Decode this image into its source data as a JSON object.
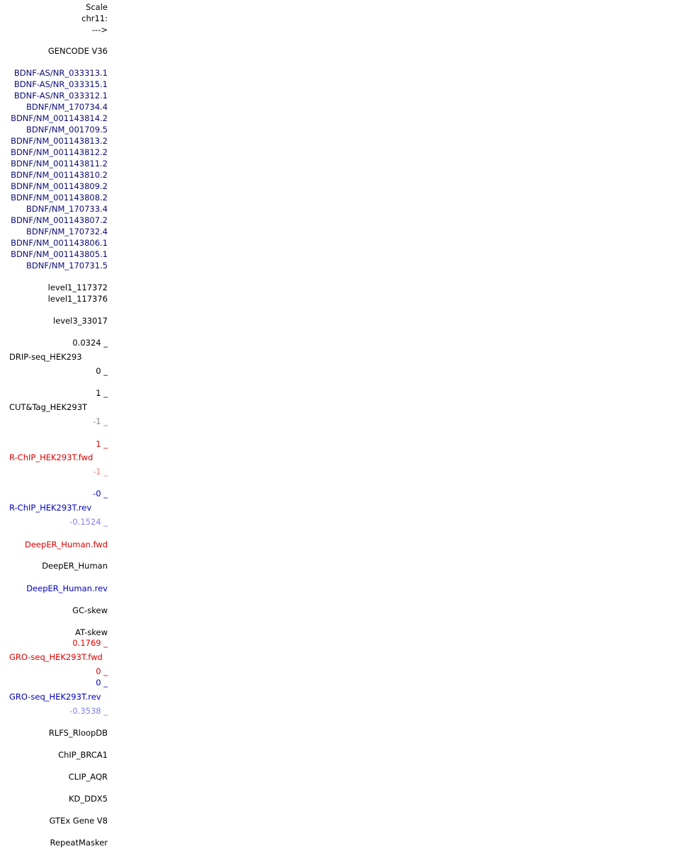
{
  "labels": [
    {
      "text": "Scale",
      "color": "#000000"
    },
    {
      "text": "chr11:",
      "color": "#000000"
    },
    {
      "text": "--->",
      "color": "#000000"
    },
    {
      "text": "GENCODE V36",
      "color": "#000000"
    },
    {
      "text": "BDNF-AS/NR_033313.1",
      "color": "#0c0c78"
    },
    {
      "text": "BDNF-AS/NR_033315.1",
      "color": "#0c0c78"
    },
    {
      "text": "BDNF-AS/NR_033312.1",
      "color": "#0c0c78"
    },
    {
      "text": "BDNF/NM_170734.4",
      "color": "#0c0c78"
    },
    {
      "text": "BDNF/NM_001143814.2",
      "color": "#0c0c78"
    },
    {
      "text": "BDNF/NM_001709.5",
      "color": "#0c0c78"
    },
    {
      "text": "BDNF/NM_001143813.2",
      "color": "#0c0c78"
    },
    {
      "text": "BDNF/NM_001143812.2",
      "color": "#0c0c78"
    },
    {
      "text": "BDNF/NM_001143811.2",
      "color": "#0c0c78"
    },
    {
      "text": "BDNF/NM_001143810.2",
      "color": "#0c0c78"
    },
    {
      "text": "BDNF/NM_001143809.2",
      "color": "#0c0c78"
    },
    {
      "text": "BDNF/NM_001143808.2",
      "color": "#0c0c78"
    },
    {
      "text": "BDNF/NM_170733.4",
      "color": "#0c0c78"
    },
    {
      "text": "BDNF/NM_001143807.2",
      "color": "#0c0c78"
    },
    {
      "text": "BDNF/NM_170732.4",
      "color": "#0c0c78"
    },
    {
      "text": "BDNF/NM_001143806.1",
      "color": "#0c0c78"
    },
    {
      "text": "BDNF/NM_001143805.1",
      "color": "#0c0c78"
    },
    {
      "text": "BDNF/NM_170731.5",
      "color": "#0c0c78"
    },
    {
      "text": "level1_117372",
      "color": "#000000"
    },
    {
      "text": "level1_117376",
      "color": "#000000"
    },
    {
      "text": "level3_33017",
      "color": "#000000"
    },
    {
      "text": "0.0324 _",
      "color": "#000000"
    },
    {
      "text": "DRIP-seq_HEK293",
      "color": "#000000"
    },
    {
      "text": "0 _",
      "color": "#000000"
    },
    {
      "text": "1 _",
      "color": "#000000"
    },
    {
      "text": "CUT&Tag_HEK293T",
      "color": "#000000"
    },
    {
      "text": "-1 _",
      "color": "#888888"
    },
    {
      "text": "1 _",
      "color": "#dd0000"
    },
    {
      "text": "R-ChIP_HEK293T.fwd",
      "color": "#dd0000"
    },
    {
      "text": "-1 _",
      "color": "#f08080"
    },
    {
      "text": "-0 _",
      "color": "#0000bb"
    },
    {
      "text": "R-ChIP_HEK293T.rev",
      "color": "#0000bb"
    },
    {
      "text": "-0.1524 _",
      "color": "#8080ee"
    },
    {
      "text": "DeepER_Human.fwd",
      "color": "#dd0000"
    },
    {
      "text": "DeepER_Human",
      "color": "#000000"
    },
    {
      "text": "DeepER_Human.rev",
      "color": "#0000bb"
    },
    {
      "text": "GC-skew",
      "color": "#000000"
    },
    {
      "text": "AT-skew",
      "color": "#000000"
    },
    {
      "text": "0.1769 _",
      "color": "#dd0000"
    },
    {
      "text": "GRO-seq_HEK293T.fwd",
      "color": "#dd0000"
    },
    {
      "text": "0 _",
      "color": "#dd0000"
    },
    {
      "text": "0 _",
      "color": "#0000bb"
    },
    {
      "text": "GRO-seq_HEK293T.rev",
      "color": "#0000bb"
    },
    {
      "text": "-0.3538 _",
      "color": "#8080ee"
    },
    {
      "text": "RLFS_RloopDB",
      "color": "#000000"
    },
    {
      "text": "ChIP_BRCA1",
      "color": "#000000"
    },
    {
      "text": "CLIP_AQR",
      "color": "#000000"
    },
    {
      "text": "KD_DDX5",
      "color": "#000000"
    },
    {
      "text": "GTEx Gene V8",
      "color": "#000000"
    },
    {
      "text": "RepeatMasker",
      "color": "#000000"
    }
  ]
}
